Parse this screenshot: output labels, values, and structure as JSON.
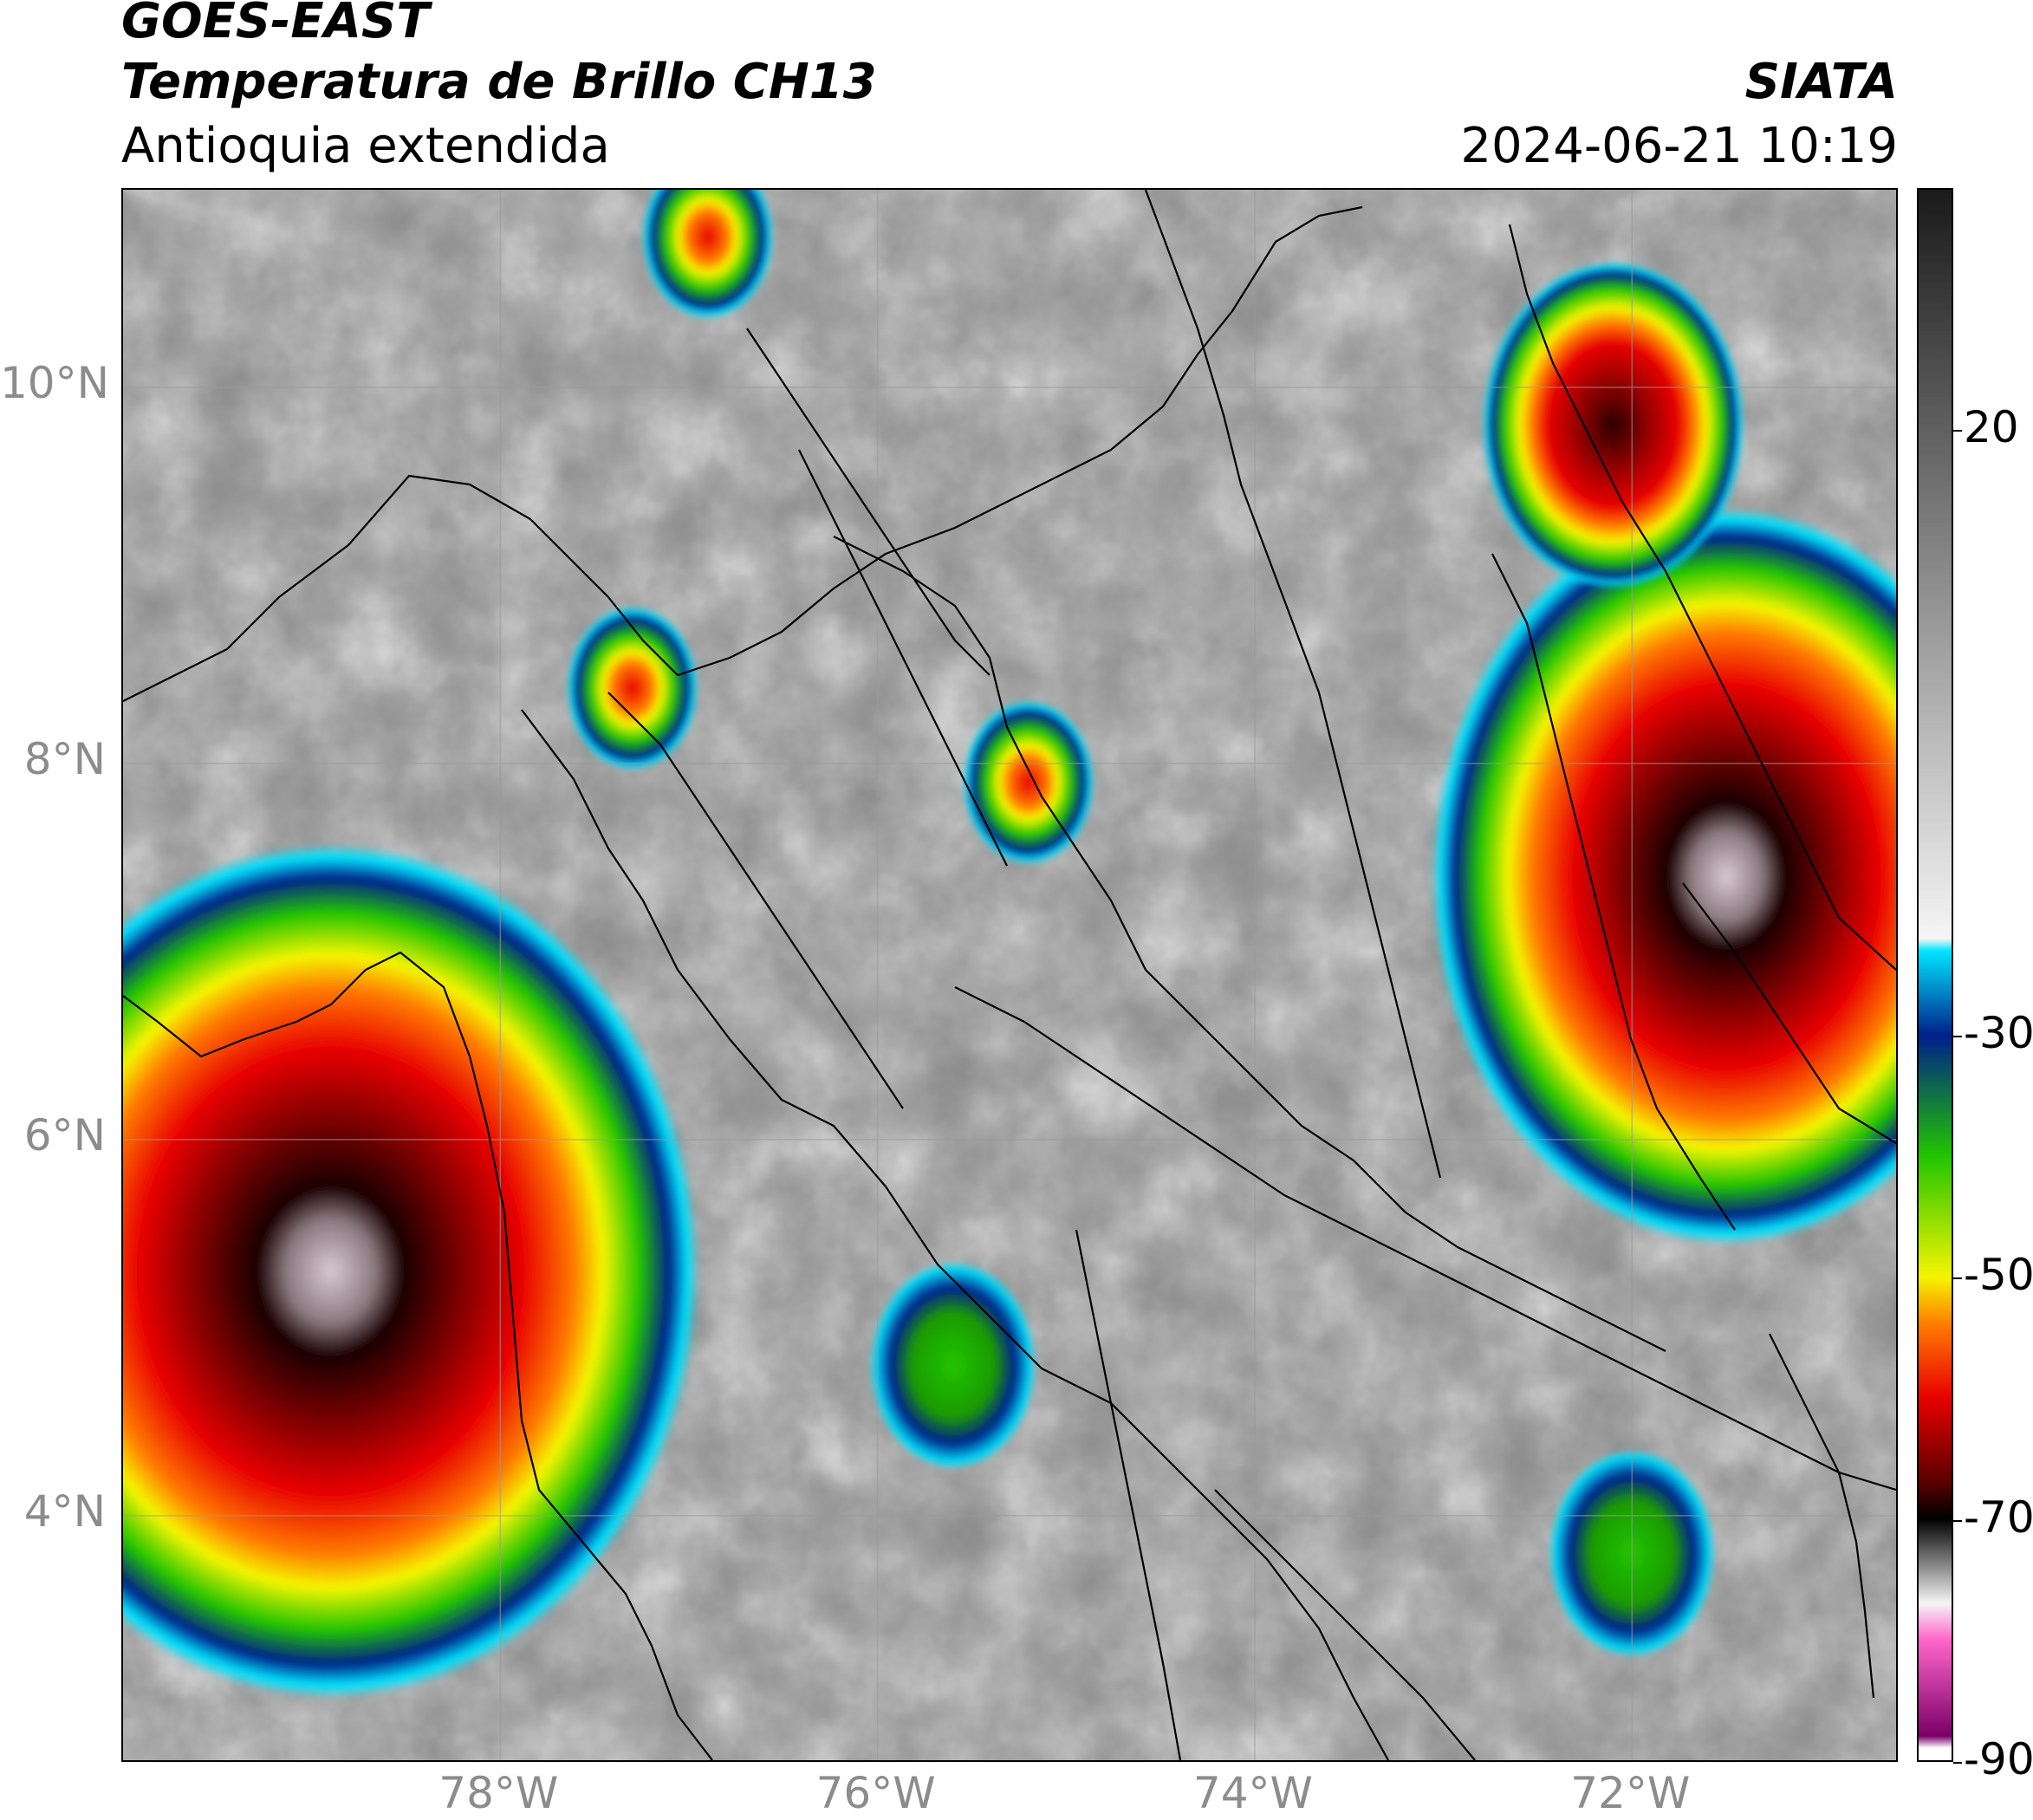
{
  "header": {
    "satellite": "GOES-EAST",
    "product": "Temperatura de Brillo CH13",
    "region": "Antioquia extendida",
    "organization": "SIATA",
    "datetime": "2024-06-21 10:19"
  },
  "map": {
    "lat_range": [
      2.7,
      11.05
    ],
    "lon_range": [
      -80.0,
      -70.6
    ],
    "lat_ticks": [
      {
        "value": 10,
        "label": "10°N"
      },
      {
        "value": 8,
        "label": "8°N"
      },
      {
        "value": 6,
        "label": "6°N"
      },
      {
        "value": 4,
        "label": "4°N"
      }
    ],
    "lon_ticks": [
      {
        "value": -78,
        "label": "78°W"
      },
      {
        "value": -76,
        "label": "76°W"
      },
      {
        "value": -74,
        "label": "74°W"
      },
      {
        "value": -72,
        "label": "72°W"
      }
    ],
    "grid": true,
    "storm_cells": [
      {
        "lon": -78.9,
        "lat": 5.3,
        "intensity": "very cold"
      },
      {
        "lon": -71.5,
        "lat": 7.4,
        "intensity": "very cold"
      },
      {
        "lon": -72.1,
        "lat": 9.8,
        "intensity": "cold"
      },
      {
        "lon": -75.2,
        "lat": 7.9,
        "intensity": "moderate"
      },
      {
        "lon": -76.9,
        "lat": 10.8,
        "intensity": "moderate"
      },
      {
        "lon": -77.3,
        "lat": 8.4,
        "intensity": "moderate"
      },
      {
        "lon": -75.6,
        "lat": 4.8,
        "intensity": "weak"
      },
      {
        "lon": -72.0,
        "lat": 3.8,
        "intensity": "weak"
      }
    ]
  },
  "colorbar": {
    "ticks": [
      {
        "value": 20,
        "label": "20"
      },
      {
        "value": -30,
        "label": "-30"
      },
      {
        "value": -50,
        "label": "-50"
      },
      {
        "value": -70,
        "label": "-70"
      },
      {
        "value": -90,
        "label": "-90"
      }
    ],
    "range": [
      -90,
      40
    ],
    "colors": {
      "grey_warm": "#1a1a1a",
      "grey_light": "#f5f5f5",
      "cyan": "#00e5ff",
      "blue": "#00208a",
      "green": "#22c400",
      "yellow": "#f5f500",
      "orange": "#ff7a00",
      "red": "#e80000",
      "dark_red": "#5a0000",
      "black": "#000000",
      "pink": "#ff66cc",
      "purple": "#7a0066"
    }
  }
}
